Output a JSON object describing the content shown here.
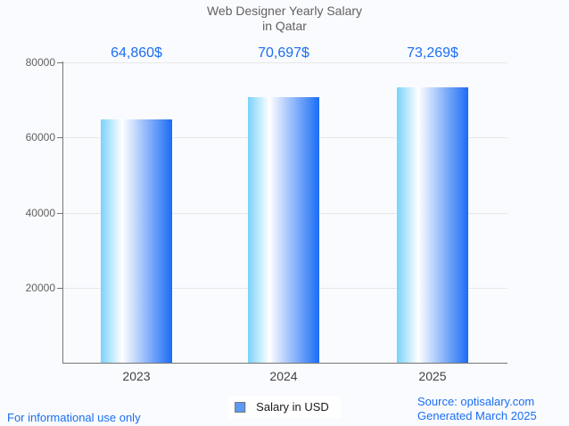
{
  "title": {
    "line1": "Web Designer Yearly Salary",
    "line2": "in Qatar"
  },
  "chart_data": {
    "type": "bar",
    "title": "Web Designer Yearly Salary in Qatar",
    "categories": [
      "2023",
      "2024",
      "2025"
    ],
    "series": [
      {
        "name": "Salary in USD",
        "values": [
          64860,
          70697,
          73269
        ],
        "value_labels": [
          "64,860$",
          "70,697$",
          "73,269$"
        ]
      }
    ],
    "xlabel": "",
    "ylabel": "",
    "ylim": [
      0,
      80000
    ],
    "yticks": [
      20000,
      40000,
      60000,
      80000
    ],
    "ytick_labels": [
      "20000",
      "40000",
      "60000",
      "80000"
    ],
    "grid": true,
    "legend_position": "bottom-center"
  },
  "legend": {
    "label": "Salary in USD"
  },
  "footer": {
    "disclaimer": "For informational use only",
    "source": "Source: optisalary.com",
    "generated": "Generated March 2025"
  },
  "colors": {
    "background": "#fafbfe",
    "accent_blue": "#1a6ef3",
    "bar_gradient_start": "#7ad2fb",
    "bar_gradient_mid": "#ffffff",
    "bar_gradient_end": "#1b6cf5",
    "legend_marker_fill": "#5b9bf5",
    "legend_marker_border": "#757575",
    "axis": "#757575",
    "gridline": "#e7e7e7",
    "title_text": "#616161",
    "ytick_text": "#616161",
    "xtick_text": "#424242",
    "legend_bg": "#ffffff",
    "legend_text": "#1a1a1a"
  }
}
